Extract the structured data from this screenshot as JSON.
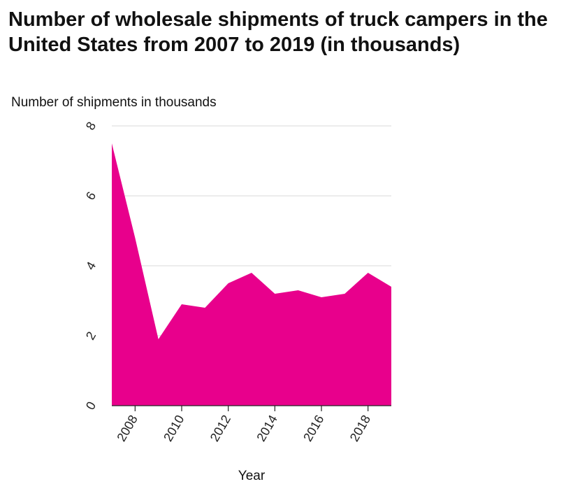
{
  "chart_data": {
    "type": "area",
    "title": "Number of wholesale shipments of truck campers in the United States from 2007 to 2019 (in thousands)",
    "xlabel": "Year",
    "ylabel": "Number of shipments in thousands",
    "x": [
      2007,
      2008,
      2009,
      2010,
      2011,
      2012,
      2013,
      2014,
      2015,
      2016,
      2017,
      2018,
      2019
    ],
    "values": [
      7.5,
      4.8,
      1.9,
      2.9,
      2.8,
      3.5,
      3.8,
      3.2,
      3.3,
      3.1,
      3.2,
      3.8,
      3.4
    ],
    "xlim": [
      2007,
      2019
    ],
    "ylim": [
      0,
      8
    ],
    "xticks": [
      2008,
      2010,
      2012,
      2014,
      2016,
      2018
    ],
    "yticks": [
      0,
      2,
      4,
      6,
      8
    ],
    "grid": "horizontal",
    "color": "#e8008c"
  }
}
